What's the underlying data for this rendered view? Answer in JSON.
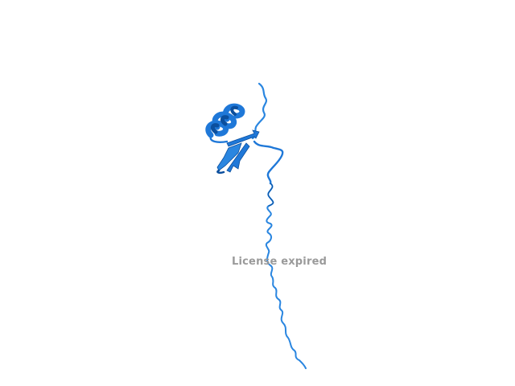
{
  "viewer": {
    "watermark_text": "License expired"
  },
  "colors": {
    "background": "#ffffff",
    "ribbon_main": "#1f78d8",
    "ribbon_dark": "#0b4f9e",
    "ribbon_light": "#4a9be8",
    "watermark": "#9a9a9a"
  }
}
